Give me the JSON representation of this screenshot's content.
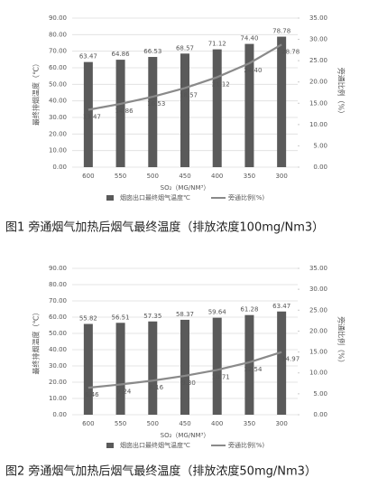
{
  "chart_data": [
    {
      "type": "bar-line",
      "caption": "图1  旁通烟气加热后烟气最终温度（排放浓度100mg/Nm3）",
      "x_label": "SO₂（MG/NM³）",
      "y_label": "最终排烟温度（℃）",
      "y2_label": "旁通比例（%）",
      "categories": [
        "600",
        "550",
        "500",
        "450",
        "400",
        "350",
        "300"
      ],
      "series": [
        {
          "name": "烟囱出口最终烟气温度℃",
          "type": "bar",
          "color": "#5a5a5a",
          "values": [
            63.47,
            64.86,
            66.53,
            68.57,
            71.12,
            74.4,
            78.78
          ],
          "value_labels": [
            "63.47",
            "64.86",
            "66.53",
            "68.57",
            "71.12",
            "74.40",
            "78.78"
          ]
        },
        {
          "name": "旁通比例(%)",
          "type": "line",
          "axis": "y2",
          "color": "#8a8a8a",
          "values": [
            13.47,
            14.86,
            16.53,
            18.57,
            21.12,
            24.4,
            28.78
          ],
          "value_labels": [
            "13.47",
            "14.86",
            "16.53",
            "18.57",
            "21.12",
            "24.40",
            "28.78"
          ]
        }
      ],
      "ylim": [
        0,
        90
      ],
      "yticks": [
        {
          "value": 0,
          "label": "0.00"
        },
        {
          "value": 10,
          "label": "10.00"
        },
        {
          "value": 20,
          "label": "20.00"
        },
        {
          "value": 30,
          "label": "30.00"
        },
        {
          "value": 40,
          "label": "40.00"
        },
        {
          "value": 50,
          "label": "50.00"
        },
        {
          "value": 60,
          "label": "60.00"
        },
        {
          "value": 70,
          "label": "70.00"
        },
        {
          "value": 80,
          "label": "80.00"
        },
        {
          "value": 90,
          "label": "90.00"
        }
      ],
      "y2lim": [
        0,
        35
      ],
      "y2ticks": [
        {
          "value": 0,
          "label": "0.00"
        },
        {
          "value": 5,
          "label": "5.00"
        },
        {
          "value": 10,
          "label": "10.00"
        },
        {
          "value": 15,
          "label": "15.00"
        },
        {
          "value": 20,
          "label": "20.00"
        },
        {
          "value": 25,
          "label": "25.00"
        },
        {
          "value": 30,
          "label": "30.00"
        },
        {
          "value": 35,
          "label": "35.00"
        }
      ],
      "grid": true,
      "legend": "bottom"
    },
    {
      "type": "bar-line",
      "caption": "图2  旁通烟气加热后烟气最终温度（排放浓度50mg/Nm3）",
      "x_label": "SO₂（MG/NM³）",
      "y_label": "最终排烟温度（℃）",
      "y2_label": "旁通比例（%）",
      "categories": [
        "600",
        "550",
        "500",
        "450",
        "400",
        "350",
        "300"
      ],
      "series": [
        {
          "name": "烟囱出口最终烟气温度℃",
          "type": "bar",
          "color": "#5a5a5a",
          "values": [
            55.82,
            56.51,
            57.35,
            58.37,
            59.64,
            61.28,
            63.47
          ],
          "value_labels": [
            "55.82",
            "56.51",
            "57.35",
            "58.37",
            "59.64",
            "61.28",
            "63.47"
          ]
        },
        {
          "name": "旁通比例(%)",
          "type": "line",
          "axis": "y2",
          "color": "#8a8a8a",
          "values": [
            6.46,
            7.24,
            8.16,
            9.3,
            10.71,
            12.54,
            14.97
          ],
          "value_labels": [
            "6.46",
            "7.24",
            "8.16",
            "9.30",
            "10.71",
            "12.54",
            "14.97"
          ]
        }
      ],
      "ylim": [
        0,
        90
      ],
      "yticks": [
        {
          "value": 0,
          "label": "0.00"
        },
        {
          "value": 10,
          "label": "10.00"
        },
        {
          "value": 20,
          "label": "20.00"
        },
        {
          "value": 30,
          "label": "30.00"
        },
        {
          "value": 40,
          "label": "40.00"
        },
        {
          "value": 50,
          "label": "50.00"
        },
        {
          "value": 60,
          "label": "60.00"
        },
        {
          "value": 70,
          "label": "70.00"
        },
        {
          "value": 80,
          "label": "80.00"
        },
        {
          "value": 90,
          "label": "90.00"
        }
      ],
      "y2lim": [
        0,
        35
      ],
      "y2ticks": [
        {
          "value": 0,
          "label": "0.00"
        },
        {
          "value": 5,
          "label": "5.00"
        },
        {
          "value": 10,
          "label": "10.00"
        },
        {
          "value": 15,
          "label": "15.00"
        },
        {
          "value": 20,
          "label": "20.00"
        },
        {
          "value": 25,
          "label": "25.00"
        },
        {
          "value": 30,
          "label": "30.00"
        },
        {
          "value": 35,
          "label": "35.00"
        }
      ],
      "grid": true,
      "legend": "bottom"
    }
  ]
}
